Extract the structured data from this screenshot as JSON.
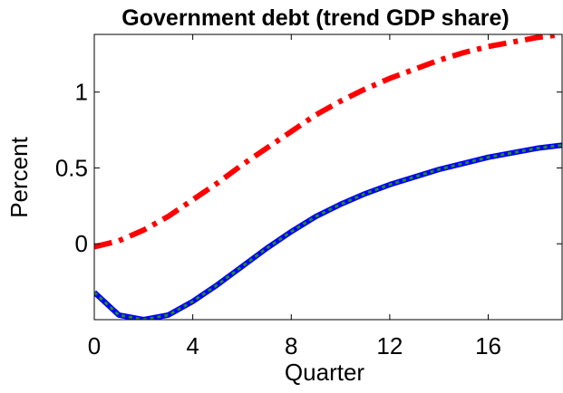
{
  "chart_data": {
    "type": "line",
    "title": "Government debt (trend GDP share)",
    "xlabel": "Quarter",
    "ylabel": "Percent",
    "xlim": [
      0,
      19
    ],
    "ylim": [
      -0.5,
      1.38
    ],
    "xticks": [
      0,
      4,
      8,
      12,
      16
    ],
    "xtick_labels": [
      "0",
      "4",
      "8",
      "12",
      "16"
    ],
    "yticks": [
      0,
      0.5,
      1
    ],
    "ytick_labels": [
      "0",
      "0.5",
      "1"
    ],
    "grid": false,
    "legend": "none",
    "x": [
      0,
      1,
      2,
      3,
      4,
      5,
      6,
      7,
      8,
      9,
      10,
      11,
      12,
      13,
      14,
      15,
      16,
      17,
      18,
      19
    ],
    "series": [
      {
        "color": "#ff0000",
        "style": "dash-dot",
        "values": [
          -0.02,
          0.02,
          0.09,
          0.18,
          0.29,
          0.4,
          0.52,
          0.63,
          0.74,
          0.85,
          0.94,
          1.02,
          1.09,
          1.15,
          1.21,
          1.26,
          1.3,
          1.33,
          1.36,
          1.38
        ]
      },
      {
        "color": "#0000ff",
        "style": "solid",
        "values": [
          -0.32,
          -0.47,
          -0.5,
          -0.47,
          -0.38,
          -0.27,
          -0.15,
          -0.03,
          0.08,
          0.18,
          0.26,
          0.33,
          0.39,
          0.44,
          0.49,
          0.53,
          0.57,
          0.6,
          0.63,
          0.65
        ]
      },
      {
        "color": "#228b22",
        "style": "dotted",
        "values": [
          -0.32,
          -0.47,
          -0.5,
          -0.47,
          -0.38,
          -0.27,
          -0.15,
          -0.03,
          0.08,
          0.18,
          0.26,
          0.33,
          0.39,
          0.44,
          0.49,
          0.53,
          0.57,
          0.6,
          0.63,
          0.65
        ]
      }
    ]
  }
}
